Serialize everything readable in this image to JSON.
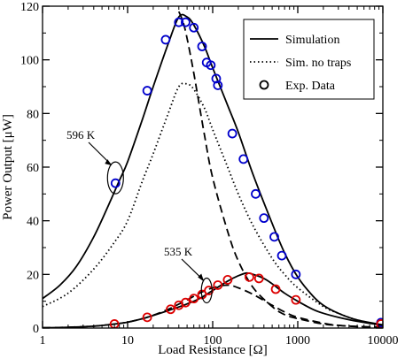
{
  "chart_data": {
    "type": "line",
    "xlabel": "Load Resistance [Ω]",
    "ylabel": "Power Output [μW]",
    "xscale": "log",
    "xlim": [
      1,
      10000
    ],
    "ylim": [
      0,
      120
    ],
    "x_ticks": [
      1,
      10,
      100,
      1000,
      10000
    ],
    "x_tick_labels": [
      "1",
      "10",
      "100",
      "1000",
      "10000"
    ],
    "y_ticks": [
      0,
      20,
      40,
      60,
      80,
      100,
      120
    ],
    "y_tick_labels": [
      "0",
      "20",
      "40",
      "60",
      "80",
      "100",
      "120"
    ],
    "grid": false,
    "legend_position": "top-right",
    "legend": [
      {
        "label": "Simulation",
        "style": "solid"
      },
      {
        "label": "Sim. no traps",
        "style": "dotted"
      },
      {
        "label": "Exp. Data",
        "style": "circle"
      }
    ],
    "annotations": [
      {
        "text": "596 K",
        "x": 7.2,
        "y": 56
      },
      {
        "text": "535 K",
        "x": 85,
        "y": 14
      }
    ],
    "series": [
      {
        "style": "solid",
        "color": "#000000",
        "x": [
          1,
          1.6,
          2.5,
          4,
          6,
          8,
          10,
          15,
          20,
          30,
          40,
          50,
          60,
          80,
          100,
          150,
          200,
          300,
          500,
          700,
          1000,
          1500,
          2000,
          3000,
          5000,
          10000
        ],
        "y": [
          11,
          16,
          23,
          34,
          46,
          55,
          62,
          78,
          90,
          106,
          116,
          116,
          113,
          105,
          97,
          83,
          73,
          57,
          39,
          28,
          19,
          12,
          8.5,
          5.5,
          3,
          1.2
        ]
      },
      {
        "style": "dotted",
        "color": "#000000",
        "x": [
          1,
          2,
          4,
          7,
          10,
          15,
          20,
          30,
          40,
          50,
          60,
          80,
          100,
          150,
          200,
          300,
          500,
          700,
          1000,
          2000,
          3000,
          5000,
          10000
        ],
        "y": [
          8,
          13,
          22,
          32,
          40,
          55,
          65,
          80,
          90,
          91,
          89,
          82,
          74,
          60,
          50,
          38,
          26,
          20,
          15,
          8,
          5.5,
          3,
          1
        ]
      },
      {
        "style": "dashed",
        "color": "#000000",
        "x": [
          40,
          45,
          50,
          60,
          80,
          100,
          150,
          200,
          300,
          500,
          700,
          1000,
          2000,
          3000,
          5000,
          10000
        ],
        "y": [
          118,
          114,
          108,
          95,
          72,
          56,
          36,
          25,
          15,
          8,
          5,
          3.5,
          1.5,
          1,
          0.5,
          0.2
        ]
      },
      {
        "style": "solid",
        "color": "#000000",
        "x": [
          1,
          2,
          4,
          7,
          10,
          15,
          20,
          30,
          50,
          70,
          100,
          150,
          200,
          250,
          300,
          400,
          500,
          700,
          1000,
          1500,
          2000,
          3000,
          5000,
          10000
        ],
        "y": [
          0.1,
          0.3,
          0.7,
          1.5,
          2.2,
          3.5,
          4.7,
          6.5,
          9,
          11,
          14,
          17.5,
          19.5,
          20.5,
          20,
          18.5,
          16.5,
          13,
          10,
          7,
          5.5,
          4,
          2.5,
          1
        ]
      },
      {
        "style": "dashed",
        "color": "#000000",
        "x": [
          1,
          2,
          4,
          7,
          10,
          15,
          20,
          30,
          50,
          70,
          100,
          150,
          200,
          300,
          500,
          700,
          1000,
          2000,
          3000,
          5000,
          10000
        ],
        "y": [
          0.1,
          0.3,
          0.7,
          1.5,
          2.2,
          3.5,
          4.8,
          7,
          10.5,
          13,
          15,
          16,
          15,
          12.5,
          8.5,
          6,
          4,
          1.8,
          1,
          0.6,
          0.3
        ]
      },
      {
        "style": "circle",
        "color": "#0000cc",
        "x": [
          7.2,
          17,
          28,
          40,
          48,
          60,
          75,
          85,
          95,
          110,
          115,
          170,
          230,
          320,
          400,
          530,
          650,
          950,
          9500
        ],
        "y": [
          54,
          88.5,
          107.5,
          114,
          114,
          112,
          105,
          99,
          98,
          93,
          90.5,
          72.5,
          63,
          50,
          41,
          34,
          27,
          20,
          2
        ]
      },
      {
        "style": "circle",
        "color": "#dd0000",
        "x": [
          7,
          17,
          32,
          40,
          48,
          60,
          75,
          90,
          115,
          150,
          270,
          350,
          550,
          950,
          9500
        ],
        "y": [
          1.5,
          4,
          7,
          8.5,
          9.5,
          11,
          12.5,
          14,
          16,
          18,
          19,
          18.5,
          14.5,
          10.5,
          1.5
        ]
      }
    ]
  }
}
